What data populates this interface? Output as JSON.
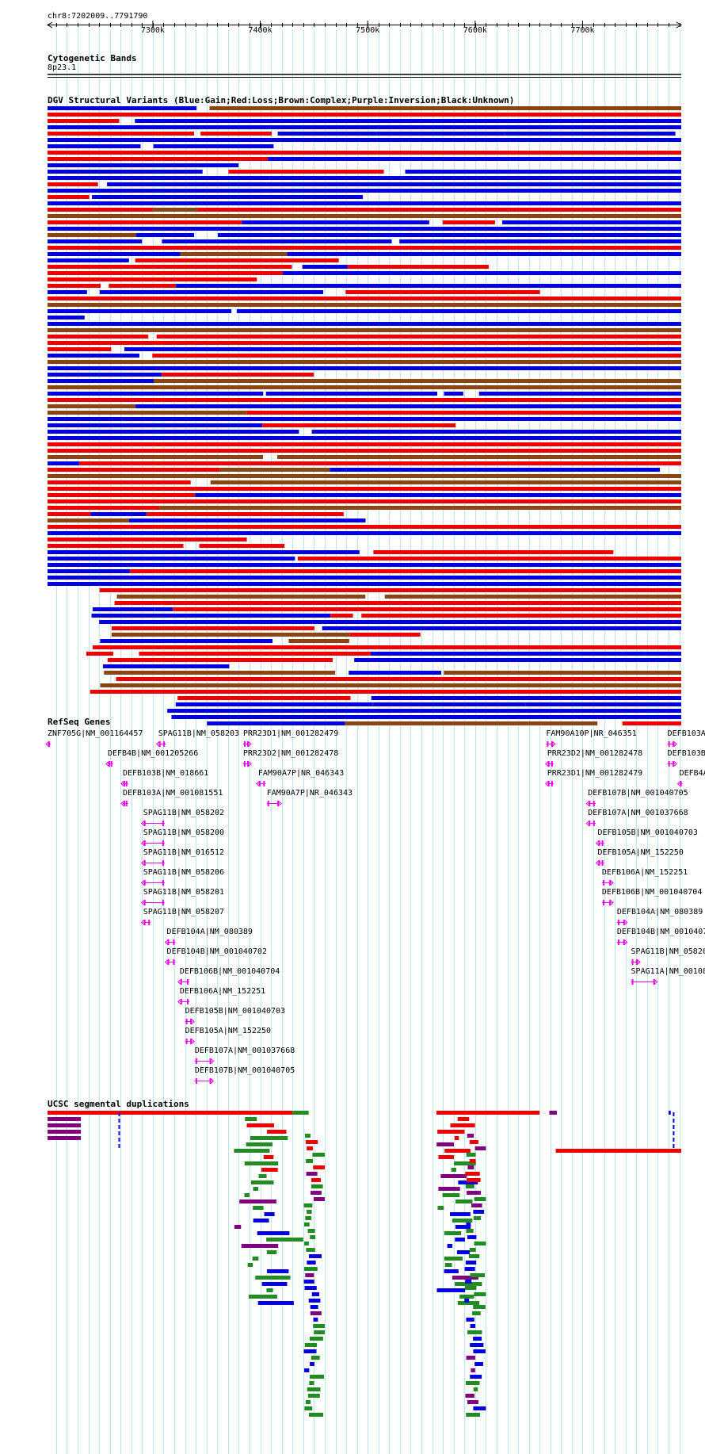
{
  "location": "chr8:7202009..7791790",
  "ruler": {
    "start": 7202009,
    "end": 7791790,
    "ticks": [
      {
        "pos": 7300000,
        "label": "7300k"
      },
      {
        "pos": 7400000,
        "label": "7400k"
      },
      {
        "pos": 7500000,
        "label": "7500k"
      },
      {
        "pos": 7600000,
        "label": "7600k"
      },
      {
        "pos": 7700000,
        "label": "7700k"
      }
    ]
  },
  "tracks": {
    "cytoband": {
      "title": "Cytogenetic Bands",
      "band": "8p23.1"
    },
    "dgv": {
      "title": "DGV Structural Variants (Blue:Gain;Red:Loss;Brown:Complex;Purple:Inversion;Black:Unknown)",
      "colors": {
        "gain": "#0000e0",
        "loss": "#ee0000",
        "complex": "#8b4513",
        "inversion": "#800080",
        "unknown": "#000000"
      }
    },
    "refseq": {
      "title": "RefSeq Genes",
      "color": "#ee00ee",
      "genes": [
        {
          "label": "ZNF705G|NM_001164457",
          "start": 7202009,
          "end": 7204500,
          "strand": "-",
          "row": 0
        },
        {
          "label": "SPAG11B|NM_058203",
          "start": 7305000,
          "end": 7312000,
          "strand": "-",
          "row": 0
        },
        {
          "label": "PRR23D1|NM_001282479",
          "start": 7384000,
          "end": 7390000,
          "strand": "+",
          "row": 0
        },
        {
          "label": "FAM90A10P|NR_046351",
          "start": 7666000,
          "end": 7673000,
          "strand": "+",
          "row": 0
        },
        {
          "label": "DEFB103A|",
          "start": 7779000,
          "end": 7786000,
          "strand": "+",
          "row": 0
        },
        {
          "label": "DEFB4B|NM_001205266",
          "start": 7258000,
          "end": 7263000,
          "strand": "-",
          "row": 1
        },
        {
          "label": "PRR23D2|NM_001282478",
          "start": 7384000,
          "end": 7390000,
          "strand": "+",
          "row": 1
        },
        {
          "label": "PRR23D2|NM_001282478",
          "start": 7667000,
          "end": 7673000,
          "strand": "-",
          "row": 1
        },
        {
          "label": "DEFB103B|",
          "start": 7779000,
          "end": 7786000,
          "strand": "+",
          "row": 1
        },
        {
          "label": "DEFB103B|NM_018661",
          "start": 7272000,
          "end": 7277000,
          "strand": "-",
          "row": 2
        },
        {
          "label": "FAM90A7P|NR_046343",
          "start": 7398000,
          "end": 7405000,
          "strand": "-",
          "row": 2
        },
        {
          "label": "PRR23D1|NM_001282479",
          "start": 7667000,
          "end": 7673000,
          "strand": "-",
          "row": 2
        },
        {
          "label": "DEFB4A",
          "start": 7790000,
          "end": 7791790,
          "strand": "-",
          "row": 2
        },
        {
          "label": "DEFB103A|NM_001081551",
          "start": 7272000,
          "end": 7277000,
          "strand": "-",
          "row": 3
        },
        {
          "label": "FAM90A7P|NR_046343",
          "start": 7406000,
          "end": 7418000,
          "strand": "+",
          "row": 3
        },
        {
          "label": "DEFB107B|NM_001040705",
          "start": 7705000,
          "end": 7712000,
          "strand": "-",
          "row": 3
        },
        {
          "label": "SPAG11B|NM_058202",
          "start": 7291000,
          "end": 7311000,
          "strand": "-",
          "row": 4
        },
        {
          "label": "DEFB107A|NM_001037668",
          "start": 7705000,
          "end": 7712000,
          "strand": "-",
          "row": 4
        },
        {
          "label": "SPAG11B|NM_058200",
          "start": 7291000,
          "end": 7311000,
          "strand": "-",
          "row": 5
        },
        {
          "label": "DEFB105B|NM_001040703",
          "start": 7714000,
          "end": 7720000,
          "strand": "-",
          "row": 5
        },
        {
          "label": "SPAG11B|NM_016512",
          "start": 7291000,
          "end": 7311000,
          "strand": "-",
          "row": 6
        },
        {
          "label": "DEFB105A|NM_152250",
          "start": 7714000,
          "end": 7720000,
          "strand": "-",
          "row": 6
        },
        {
          "label": "SPAG11B|NM_058206",
          "start": 7291000,
          "end": 7311000,
          "strand": "-",
          "row": 7
        },
        {
          "label": "DEFB106A|NM_152251",
          "start": 7718000,
          "end": 7727000,
          "strand": "+",
          "row": 7
        },
        {
          "label": "SPAG11B|NM_058201",
          "start": 7291000,
          "end": 7311000,
          "strand": "-",
          "row": 8
        },
        {
          "label": "DEFB106B|NM_001040704",
          "start": 7718000,
          "end": 7727000,
          "strand": "+",
          "row": 8
        },
        {
          "label": "SPAG11B|NM_058207",
          "start": 7291000,
          "end": 7298000,
          "strand": "-",
          "row": 9
        },
        {
          "label": "DEFB104A|NM_080389",
          "start": 7732000,
          "end": 7740000,
          "strand": "+",
          "row": 9
        },
        {
          "label": "DEFB104A|NM_080389",
          "start": 7313000,
          "end": 7321000,
          "strand": "-",
          "row": 10
        },
        {
          "label": "DEFB104B|NM_00104070",
          "start": 7732000,
          "end": 7740000,
          "strand": "+",
          "row": 10
        },
        {
          "label": "DEFB104B|NM_001040702",
          "start": 7313000,
          "end": 7321000,
          "strand": "-",
          "row": 11
        },
        {
          "label": "SPAG11B|NM_05820",
          "start": 7745000,
          "end": 7752000,
          "strand": "+",
          "row": 11
        },
        {
          "label": "DEFB106B|NM_001040704",
          "start": 7325000,
          "end": 7334000,
          "strand": "-",
          "row": 12
        },
        {
          "label": "SPAG11A|NM_00108",
          "start": 7745000,
          "end": 7768000,
          "strand": "+",
          "row": 12
        },
        {
          "label": "DEFB106A|NM_152251",
          "start": 7325000,
          "end": 7334000,
          "strand": "-",
          "row": 13
        },
        {
          "label": "DEFB105B|NM_001040703",
          "start": 7330000,
          "end": 7337000,
          "strand": "+",
          "row": 14
        },
        {
          "label": "DEFB105A|NM_152250",
          "start": 7330000,
          "end": 7337000,
          "strand": "+",
          "row": 15
        },
        {
          "label": "DEFB107A|NM_001037668",
          "start": 7339000,
          "end": 7355000,
          "strand": "+",
          "row": 16
        },
        {
          "label": "DEFB107B|NM_001040705",
          "start": 7339000,
          "end": 7355000,
          "strand": "+",
          "row": 17
        }
      ]
    },
    "segdup": {
      "title": "UCSC segmental duplications",
      "colors": {
        "high": "#ee0000",
        "mid": "#800080",
        "low": "#228b22",
        "lowest": "#0000e0"
      }
    }
  }
}
